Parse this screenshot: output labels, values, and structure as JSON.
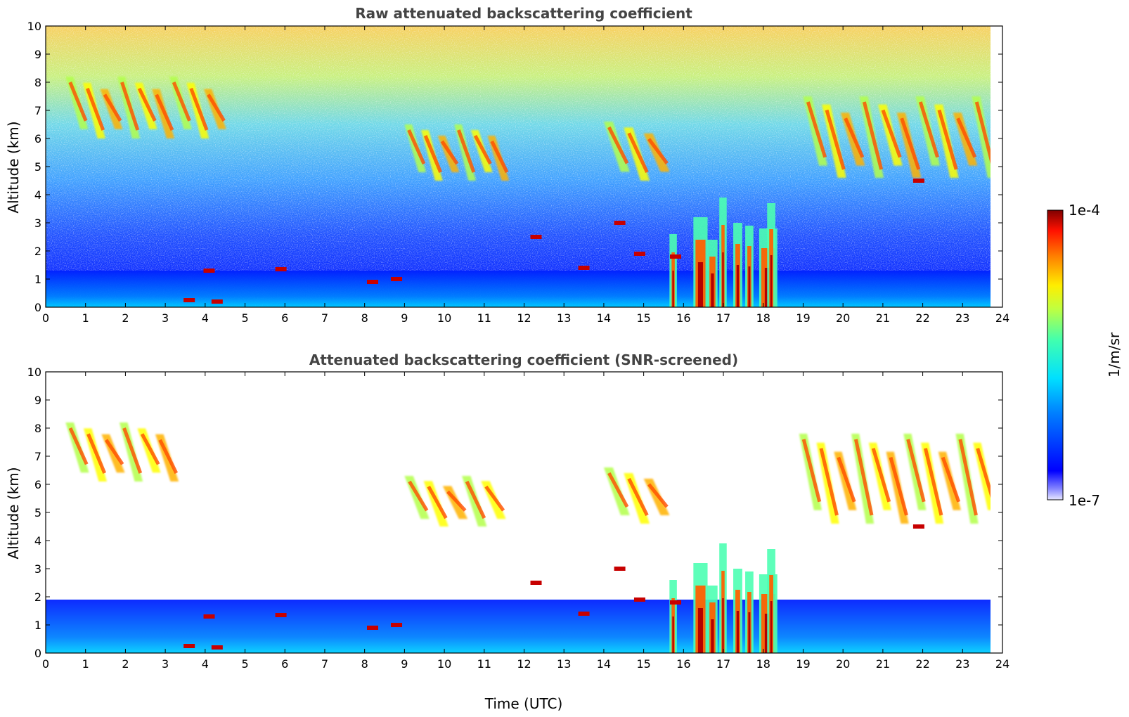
{
  "chart_data": [
    {
      "type": "heatmap",
      "title": "Raw attenuated backscattering coefficient",
      "xlabel": "",
      "ylabel": "Altitude (km)",
      "xlim": [
        0,
        24
      ],
      "ylim": [
        0,
        10
      ],
      "xticks": [
        "0",
        "1",
        "2",
        "3",
        "4",
        "5",
        "6",
        "7",
        "8",
        "9",
        "10",
        "11",
        "12",
        "13",
        "14",
        "15",
        "16",
        "17",
        "18",
        "19",
        "20",
        "21",
        "22",
        "23",
        "24"
      ],
      "yticks": [
        "0",
        "1",
        "2",
        "3",
        "4",
        "5",
        "6",
        "7",
        "8",
        "9",
        "10"
      ],
      "data_end_time": 23.7,
      "colorscale": "jet",
      "features": [
        {
          "kind": "boundary_layer",
          "t": [
            0,
            23.7
          ],
          "alt": [
            0,
            1.3
          ]
        },
        {
          "kind": "cirrus_band",
          "t": [
            0.5,
            4.4
          ],
          "alt": [
            6.0,
            8.2
          ]
        },
        {
          "kind": "cirrus_band",
          "t": [
            9.0,
            11.5
          ],
          "alt": [
            4.5,
            6.5
          ]
        },
        {
          "kind": "cirrus_band",
          "t": [
            14.0,
            15.5
          ],
          "alt": [
            4.5,
            6.6
          ]
        },
        {
          "kind": "cirrus_band",
          "t": [
            19.0,
            23.7
          ],
          "alt": [
            4.6,
            7.5
          ]
        },
        {
          "kind": "precipitation_shafts",
          "t": [
            16.2,
            18.3
          ],
          "alt": [
            0,
            4.0
          ]
        }
      ]
    },
    {
      "type": "heatmap",
      "title": "Attenuated backscattering coefficient (SNR-screened)",
      "xlabel": "Time (UTC)",
      "ylabel": "Altitude (km)",
      "xlim": [
        0,
        24
      ],
      "ylim": [
        0,
        10
      ],
      "xticks": [
        "0",
        "1",
        "2",
        "3",
        "4",
        "5",
        "6",
        "7",
        "8",
        "9",
        "10",
        "11",
        "12",
        "13",
        "14",
        "15",
        "16",
        "17",
        "18",
        "19",
        "20",
        "21",
        "22",
        "23",
        "24"
      ],
      "yticks": [
        "0",
        "1",
        "2",
        "3",
        "4",
        "5",
        "6",
        "7",
        "8",
        "9",
        "10"
      ],
      "data_end_time": 23.7,
      "colorscale": "jet",
      "features": [
        {
          "kind": "boundary_layer",
          "t": [
            0,
            23.7
          ],
          "alt": [
            0,
            1.9
          ]
        },
        {
          "kind": "cirrus_band",
          "t": [
            0.5,
            3.2
          ],
          "alt": [
            6.1,
            8.2
          ]
        },
        {
          "kind": "cirrus_band",
          "t": [
            9.0,
            11.4
          ],
          "alt": [
            4.5,
            6.3
          ]
        },
        {
          "kind": "cirrus_band",
          "t": [
            14.0,
            15.5
          ],
          "alt": [
            4.6,
            6.6
          ]
        },
        {
          "kind": "cirrus_band",
          "t": [
            18.9,
            23.7
          ],
          "alt": [
            4.6,
            7.8
          ]
        },
        {
          "kind": "precipitation_shafts",
          "t": [
            16.2,
            18.3
          ],
          "alt": [
            0,
            4.0
          ]
        }
      ]
    }
  ],
  "colorbar": {
    "label": "1/m/sr",
    "max_label": "1e-4",
    "min_label": "1e-7",
    "range": [
      1e-07,
      0.0001
    ],
    "scale": "log"
  },
  "colors": {
    "title": "#444444",
    "jet_dark_blue": "#00007f",
    "jet_blue": "#0000ff",
    "jet_cyan": "#00ffff",
    "jet_yellow": "#ffff00",
    "jet_red": "#ff0000",
    "jet_dark_red": "#7f0000"
  }
}
